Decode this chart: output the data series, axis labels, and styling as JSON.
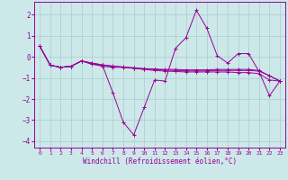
{
  "xlabel": "Windchill (Refroidissement éolien,°C)",
  "xlim": [
    -0.5,
    23.5
  ],
  "ylim": [
    -4.3,
    2.6
  ],
  "yticks": [
    -4,
    -3,
    -2,
    -1,
    0,
    1,
    2
  ],
  "xticks": [
    0,
    1,
    2,
    3,
    4,
    5,
    6,
    7,
    8,
    9,
    10,
    11,
    12,
    13,
    14,
    15,
    16,
    17,
    18,
    19,
    20,
    21,
    22,
    23
  ],
  "bg_color": "#cce8e8",
  "grid_color": "#aacece",
  "line_color": "#990099",
  "line1": [
    0.5,
    -0.4,
    -0.5,
    -0.45,
    -0.2,
    -0.35,
    -0.4,
    -1.7,
    -3.1,
    -3.7,
    -2.4,
    -1.1,
    -1.15,
    0.4,
    0.9,
    2.2,
    1.35,
    0.05,
    -0.3,
    0.15,
    0.15,
    -0.7,
    -1.85,
    -1.15
  ],
  "line2": [
    0.5,
    -0.4,
    -0.5,
    -0.45,
    -0.2,
    -0.35,
    -0.45,
    -0.5,
    -0.5,
    -0.55,
    -0.6,
    -0.65,
    -0.68,
    -0.7,
    -0.72,
    -0.72,
    -0.72,
    -0.72,
    -0.72,
    -0.75,
    -0.75,
    -0.8,
    -1.1,
    -1.15
  ],
  "line3": [
    0.5,
    -0.4,
    -0.5,
    -0.45,
    -0.2,
    -0.3,
    -0.38,
    -0.44,
    -0.48,
    -0.52,
    -0.56,
    -0.58,
    -0.6,
    -0.6,
    -0.62,
    -0.62,
    -0.62,
    -0.6,
    -0.6,
    -0.6,
    -0.6,
    -0.65,
    -0.9,
    -1.15
  ],
  "line4": [
    0.5,
    -0.4,
    -0.5,
    -0.45,
    -0.2,
    -0.3,
    -0.4,
    -0.45,
    -0.5,
    -0.54,
    -0.58,
    -0.6,
    -0.63,
    -0.65,
    -0.67,
    -0.67,
    -0.67,
    -0.65,
    -0.65,
    -0.65,
    -0.65,
    -0.68,
    -0.9,
    -1.15
  ]
}
